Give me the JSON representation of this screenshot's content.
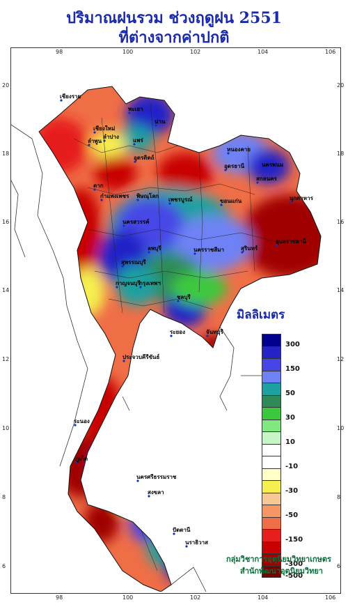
{
  "title_line1": "ปริมาณฝนรวม ช่วงฤดูฝน 2551",
  "title_line2": "ที่ต่างจากค่าปกติ",
  "axes": {
    "x_ticks": [
      "98",
      "100",
      "102",
      "104",
      "106"
    ],
    "y_ticks": [
      "20",
      "18",
      "16",
      "14",
      "12",
      "10",
      "8",
      "6"
    ]
  },
  "legend": {
    "title": "มิลลิเมตร",
    "labels": [
      "300",
      "150",
      "50",
      "30",
      "10",
      "-10",
      "-30",
      "-50",
      "-150",
      "-300",
      "-500"
    ],
    "colors": [
      "#00008c",
      "#2323c8",
      "#4646e6",
      "#6e82f5",
      "#1ea0a0",
      "#2e8b57",
      "#3cc83c",
      "#7fe87f",
      "#c8f5c8",
      "#ffffff",
      "#ffffff",
      "#ffffc8",
      "#f5f050",
      "#f5c896",
      "#f59664",
      "#f06e46",
      "#e61e1e",
      "#c80000",
      "#a00000",
      "#780000"
    ]
  },
  "provinces": [
    "เชียงราย",
    "เชียงใหม่",
    "ลำพูน",
    "ลำปาง",
    "แพร่",
    "น่าน",
    "พะเยา",
    "อุตรดิตถ์",
    "ตาก",
    "กำแพงเพชร",
    "พิษณุโลก",
    "เพชรบูรณ์",
    "หนองคาย",
    "อุดรธานี",
    "นครพนม",
    "สกลนคร",
    "มุกดาหาร",
    "ขอนแก่น",
    "นครสวรรค์",
    "ลพบุรี",
    "นครราชสีมา",
    "สุรินทร์",
    "อุบลราชธานี",
    "สุพรรณบุรี",
    "กาญจนบุรี",
    "กรุงเทพฯ",
    "ชลบุรี",
    "ระยอง",
    "จันทบุรี",
    "ประจวบคีรีขันธ์",
    "ระนอง",
    "นครศรีธรรมราช",
    "ภูเก็ต",
    "สงขลา",
    "ปัตตานี",
    "นราธิวาส"
  ],
  "credit_line1": "กลุ่มวิชาการอุตุนิยมวิทยาเกษตร",
  "credit_line2": "สำนักพัฒนาอุตุนิยมวิทยา"
}
